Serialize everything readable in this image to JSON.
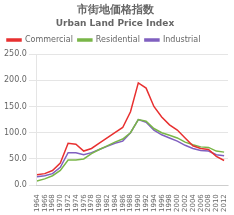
{
  "chart_data": {
    "type": "line",
    "title": "市街地価格指数",
    "subtitle": "Urban Land Price Index",
    "x": [
      1964,
      1966,
      1968,
      1970,
      1972,
      1974,
      1976,
      1978,
      1980,
      1982,
      1984,
      1986,
      1988,
      1990,
      1992,
      1994,
      1996,
      1998,
      2000,
      2002,
      2004,
      2006,
      2008,
      2010,
      2012
    ],
    "series": [
      {
        "name": "Commercial",
        "color": "#e83030",
        "values": [
          20,
          22,
          28,
          42,
          80,
          78,
          65,
          70,
          80,
          90,
          100,
          110,
          140,
          195,
          185,
          150,
          130,
          115,
          105,
          90,
          75,
          70,
          68,
          55,
          47
        ]
      },
      {
        "name": "Residential",
        "color": "#7ab648",
        "values": [
          8,
          12,
          18,
          28,
          48,
          48,
          50,
          60,
          68,
          75,
          82,
          88,
          100,
          125,
          122,
          108,
          100,
          95,
          90,
          82,
          77,
          73,
          72,
          65,
          63
        ]
      },
      {
        "name": "Industrial",
        "color": "#8060c0",
        "values": [
          16,
          18,
          22,
          34,
          62,
          62,
          58,
          62,
          68,
          74,
          80,
          84,
          100,
          125,
          120,
          105,
          96,
          90,
          84,
          76,
          70,
          66,
          65,
          58,
          56
        ]
      }
    ],
    "xlim": [
      1964,
      2013
    ],
    "xticks": [
      1964,
      1966,
      1968,
      1970,
      1972,
      1974,
      1976,
      1978,
      1980,
      1982,
      1984,
      1986,
      1988,
      1990,
      1992,
      1994,
      1996,
      1998,
      2000,
      2002,
      2004,
      2006,
      2008,
      2010,
      2012
    ],
    "ylim": [
      0,
      250
    ],
    "yticks": [
      {
        "value": 0,
        "label": "0.0"
      },
      {
        "value": 50,
        "label": "50.0"
      },
      {
        "value": 100,
        "label": "100.0"
      },
      {
        "value": 150,
        "label": "150.0"
      },
      {
        "value": 200,
        "label": "200.0"
      },
      {
        "value": 250,
        "label": "250.0"
      }
    ],
    "grid": "y",
    "legend": "upper left"
  }
}
